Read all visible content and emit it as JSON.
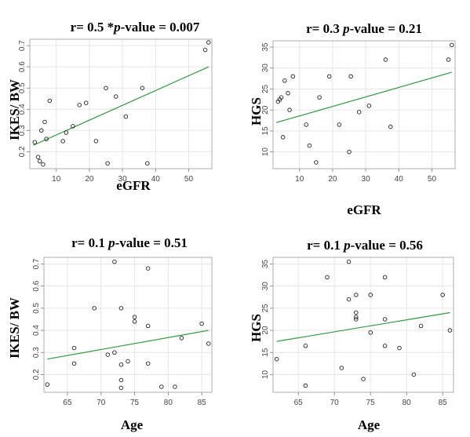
{
  "colors": {
    "fit_line": "#2e9a3e",
    "point": "#222222",
    "grid": "#e6e6e6"
  },
  "chart_data": [
    {
      "type": "scatter",
      "title": {
        "prefix": "r= 0.5  *",
        "italic": "p",
        "suffix": "-value = 0.007"
      },
      "xlabel": "eGFR",
      "ylabel": "IKES/ BW",
      "xlim": [
        2,
        57
      ],
      "ylim": [
        0.12,
        0.73
      ],
      "xticks": [
        10,
        20,
        30,
        40,
        50
      ],
      "yticks": [
        0.2,
        0.3,
        0.4,
        0.5,
        0.6,
        0.7
      ],
      "grid": true,
      "points": {
        "x": [
          3.5,
          4.5,
          5,
          5.5,
          6,
          6.5,
          7,
          8,
          12,
          13,
          15,
          17,
          19,
          22,
          25,
          25.5,
          28,
          31,
          36,
          37.5,
          55,
          56
        ],
        "y": [
          0.245,
          0.175,
          0.155,
          0.3,
          0.14,
          0.34,
          0.26,
          0.44,
          0.25,
          0.29,
          0.32,
          0.42,
          0.43,
          0.25,
          0.5,
          0.145,
          0.46,
          0.365,
          0.5,
          0.145,
          0.68,
          0.715
        ]
      },
      "fit_line": {
        "x": [
          3,
          56
        ],
        "y": [
          0.23,
          0.6
        ]
      }
    },
    {
      "type": "scatter",
      "title": {
        "prefix": "r= 0.3 ",
        "italic": "p",
        "suffix": "-value = 0.21"
      },
      "xlabel": "eGFR",
      "ylabel": "HGS",
      "xlim": [
        2,
        57
      ],
      "ylim": [
        6,
        36.5
      ],
      "xticks": [
        10,
        20,
        30,
        40,
        50
      ],
      "yticks": [
        10,
        15,
        20,
        25,
        30,
        35
      ],
      "grid": true,
      "points": {
        "x": [
          3.5,
          4.5,
          5,
          5.5,
          6.5,
          7,
          8,
          12,
          13,
          15,
          16,
          19,
          22,
          25,
          25.5,
          28,
          31,
          36,
          37.5,
          55,
          56,
          4
        ],
        "y": [
          22,
          23,
          13.5,
          27,
          24,
          20,
          28,
          16.5,
          11.5,
          7.5,
          23,
          28,
          16.5,
          10,
          28,
          19.5,
          21,
          32,
          16,
          32,
          35.5,
          22.5
        ]
      },
      "fit_line": {
        "x": [
          3,
          56
        ],
        "y": [
          17,
          29
        ]
      }
    },
    {
      "type": "scatter",
      "title": {
        "prefix": "r= 0.1 ",
        "italic": "p",
        "suffix": "-value = 0.51"
      },
      "xlabel": "Age",
      "ylabel": "IKES/ BW",
      "xlim": [
        61.5,
        86.5
      ],
      "ylim": [
        0.12,
        0.73
      ],
      "xticks": [
        65,
        70,
        75,
        80,
        85
      ],
      "yticks": [
        0.2,
        0.3,
        0.4,
        0.5,
        0.6,
        0.7
      ],
      "grid": true,
      "points": {
        "x": [
          62,
          66,
          66,
          69,
          71,
          72,
          72,
          73,
          73,
          73,
          73,
          74,
          75,
          75,
          77,
          77,
          77,
          79,
          81,
          82,
          85,
          86
        ],
        "y": [
          0.155,
          0.32,
          0.25,
          0.5,
          0.29,
          0.71,
          0.3,
          0.5,
          0.245,
          0.175,
          0.14,
          0.26,
          0.46,
          0.44,
          0.68,
          0.42,
          0.25,
          0.145,
          0.145,
          0.365,
          0.43,
          0.34
        ]
      },
      "fit_line": {
        "x": [
          62,
          86
        ],
        "y": [
          0.27,
          0.4
        ]
      }
    },
    {
      "type": "scatter",
      "title": {
        "prefix": "r= 0.1 ",
        "italic": "p",
        "suffix": "-value = 0.56"
      },
      "xlabel": "Age",
      "ylabel": "HGS",
      "xlim": [
        61.5,
        86.5
      ],
      "ylim": [
        6,
        36.5
      ],
      "xticks": [
        65,
        70,
        75,
        80,
        85
      ],
      "yticks": [
        10,
        15,
        20,
        25,
        30,
        35
      ],
      "grid": true,
      "points": {
        "x": [
          62,
          66,
          66,
          69,
          71,
          72,
          72,
          73,
          73,
          73,
          73,
          74,
          75,
          75,
          77,
          77,
          77,
          79,
          81,
          82,
          85,
          86
        ],
        "y": [
          13.5,
          16.5,
          7.5,
          32,
          11.5,
          35.5,
          27,
          28,
          24,
          22.5,
          23,
          9,
          28,
          19.5,
          32,
          22.5,
          16.5,
          16,
          10,
          21,
          28,
          20
        ]
      },
      "fit_line": {
        "x": [
          62,
          86
        ],
        "y": [
          17.5,
          24
        ]
      }
    }
  ]
}
